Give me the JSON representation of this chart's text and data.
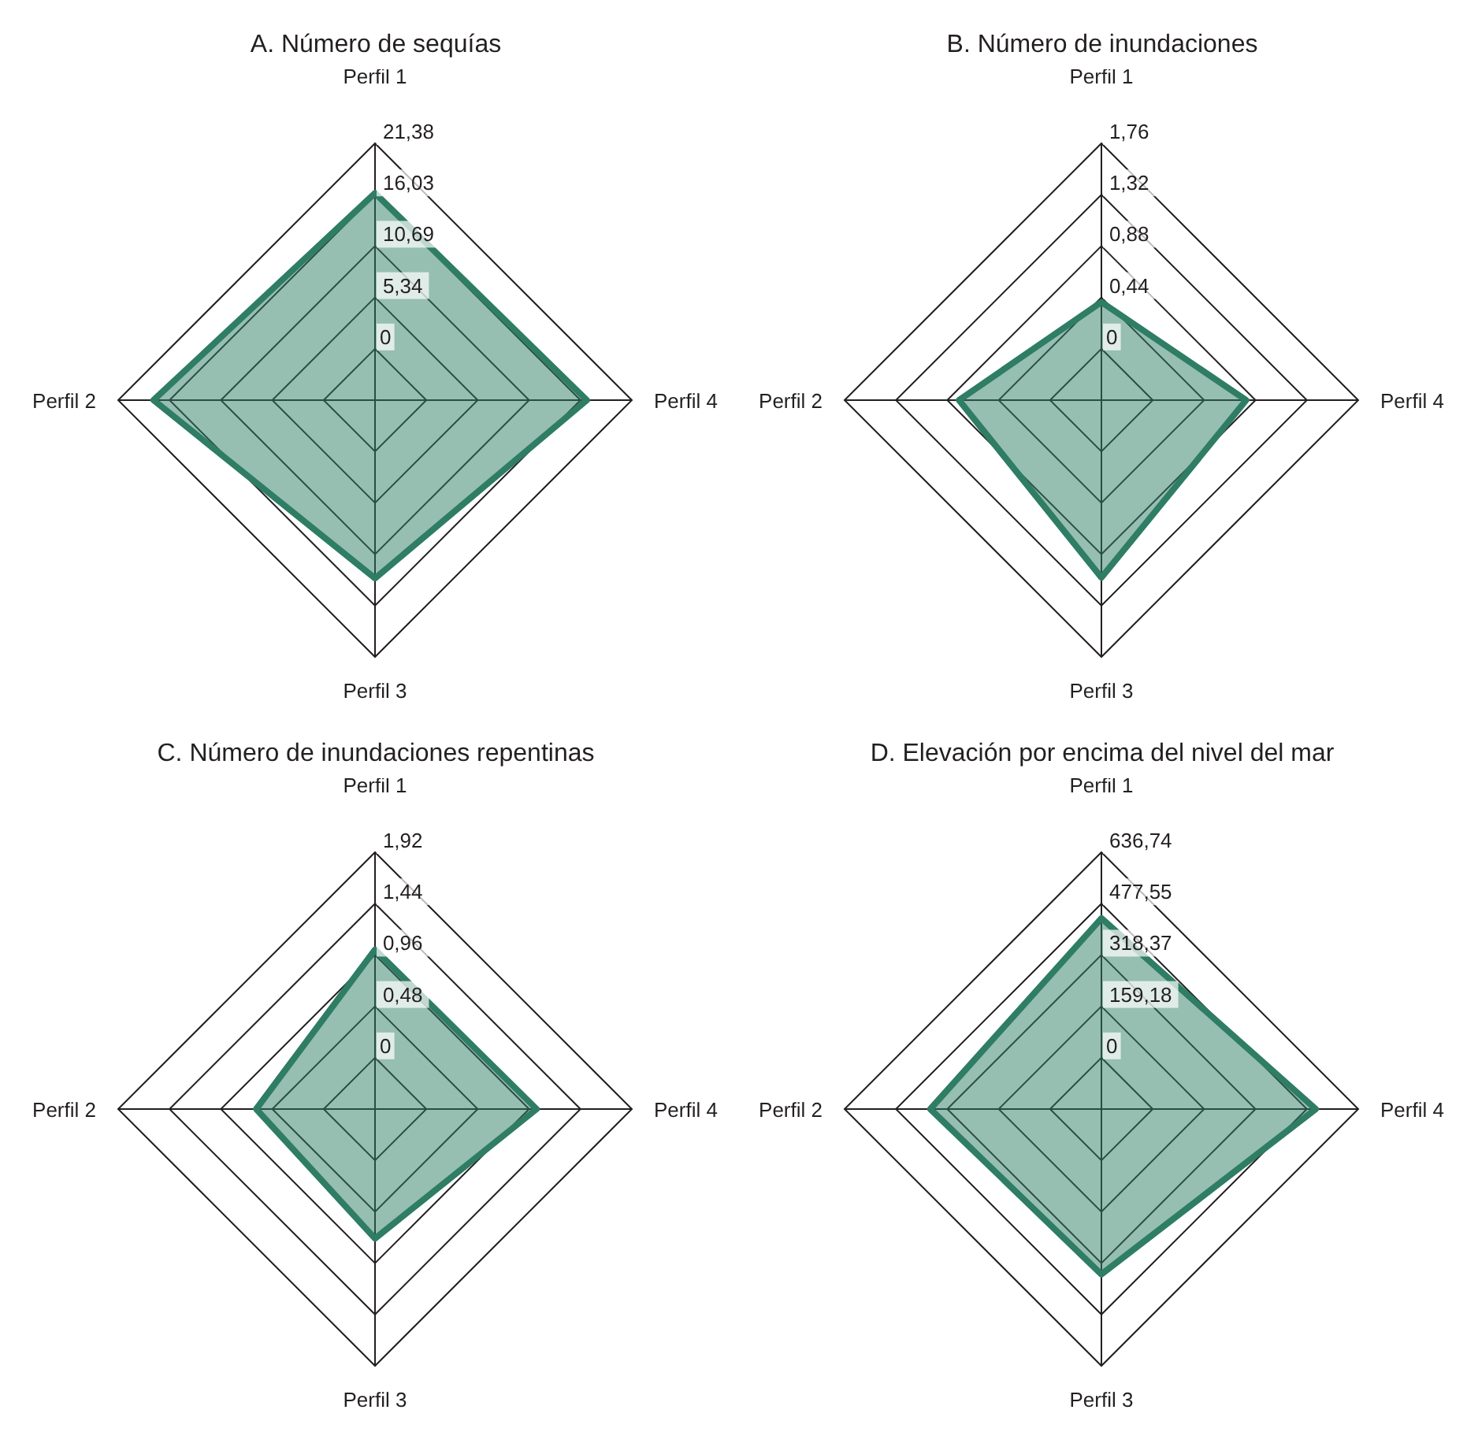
{
  "chart_data": [
    {
      "type": "radar",
      "title": "A. Número de sequías",
      "categories": [
        "Perfil 1",
        "Perfil 4",
        "Perfil 3",
        "Perfil 2"
      ],
      "grid": true,
      "series": [
        {
          "color": "#2e7d64",
          "values": [
            16.2,
            16.7,
            13.2,
            17.7
          ]
        }
      ],
      "ylim": [
        -5.345,
        21.38
      ],
      "yticks": [
        {
          "value": 0,
          "label": "0"
        },
        {
          "value": 5.345,
          "label": "5,34"
        },
        {
          "value": 10.69,
          "label": "10,69"
        },
        {
          "value": 16.035,
          "label": "16,03"
        },
        {
          "value": 21.38,
          "label": "21,38"
        }
      ]
    },
    {
      "type": "radar",
      "title": "B. Número de inundaciones",
      "categories": [
        "Perfil 1",
        "Perfil 4",
        "Perfil 3",
        "Perfil 2"
      ],
      "grid": true,
      "series": [
        {
          "color": "#2e7d64",
          "values": [
            0.4,
            0.8,
            1.08,
            0.78
          ]
        }
      ],
      "ylim": [
        -0.44,
        1.76
      ],
      "yticks": [
        {
          "value": 0,
          "label": "0"
        },
        {
          "value": 0.44,
          "label": "0,44"
        },
        {
          "value": 0.88,
          "label": "0,88"
        },
        {
          "value": 1.32,
          "label": "1,32"
        },
        {
          "value": 1.76,
          "label": "1,76"
        }
      ]
    },
    {
      "type": "radar",
      "title": "C. Número de inundaciones repentinas",
      "categories": [
        "Perfil 1",
        "Perfil 4",
        "Perfil 3",
        "Perfil 2"
      ],
      "grid": true,
      "series": [
        {
          "color": "#2e7d64",
          "values": [
            1.01,
            1.03,
            0.73,
            0.63
          ]
        }
      ],
      "ylim": [
        -0.48,
        1.92
      ],
      "yticks": [
        {
          "value": 0,
          "label": "0"
        },
        {
          "value": 0.48,
          "label": "0,48"
        },
        {
          "value": 0.96,
          "label": "0,96"
        },
        {
          "value": 1.44,
          "label": "1,44"
        },
        {
          "value": 1.92,
          "label": "1,92"
        }
      ]
    },
    {
      "type": "radar",
      "title": "D. Elevación por encima del nivel del mar",
      "categories": [
        "Perfil 1",
        "Perfil 4",
        "Perfil 3",
        "Perfil 2"
      ],
      "grid": true,
      "series": [
        {
          "color": "#2e7d64",
          "values": [
            432,
            505,
            353,
            371
          ]
        }
      ],
      "ylim": [
        -159.185,
        636.74
      ],
      "yticks": [
        {
          "value": 0,
          "label": "0"
        },
        {
          "value": 159.185,
          "label": "159,18"
        },
        {
          "value": 318.37,
          "label": "318,37"
        },
        {
          "value": 477.555,
          "label": "477,55"
        },
        {
          "value": 636.74,
          "label": "636,74"
        }
      ]
    }
  ]
}
